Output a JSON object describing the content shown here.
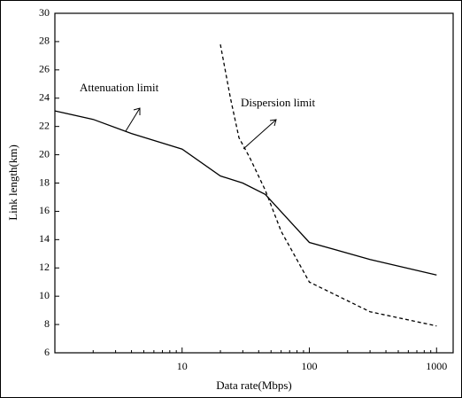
{
  "chart_data": {
    "type": "line",
    "xlabel": "Data rate(Mbps)",
    "ylabel": "Link length(km)",
    "xscale": "log",
    "xlim": [
      1,
      1350
    ],
    "xticks": [
      10,
      100,
      1000
    ],
    "ylim": [
      6,
      30
    ],
    "yticks": [
      6,
      8,
      10,
      12,
      14,
      16,
      18,
      20,
      22,
      24,
      26,
      28,
      30
    ],
    "annotations": [
      "Attenuation limit",
      "Dispersion limit"
    ],
    "series": [
      {
        "name": "Attenuation limit",
        "color": "#000000",
        "linestyle": "solid",
        "x": [
          1,
          2,
          4,
          10,
          20,
          30,
          45,
          100,
          300,
          1000
        ],
        "values": [
          23.1,
          22.5,
          21.5,
          20.4,
          18.5,
          18.0,
          17.2,
          13.8,
          12.6,
          11.5
        ]
      },
      {
        "name": "Dispersion limit",
        "color": "#000000",
        "linestyle": "dashed",
        "x": [
          20,
          24,
          28,
          34,
          45,
          60,
          100,
          300,
          1000
        ],
        "values": [
          27.8,
          24.0,
          21.2,
          19.8,
          17.5,
          14.6,
          11.0,
          8.9,
          7.9
        ]
      }
    ]
  }
}
